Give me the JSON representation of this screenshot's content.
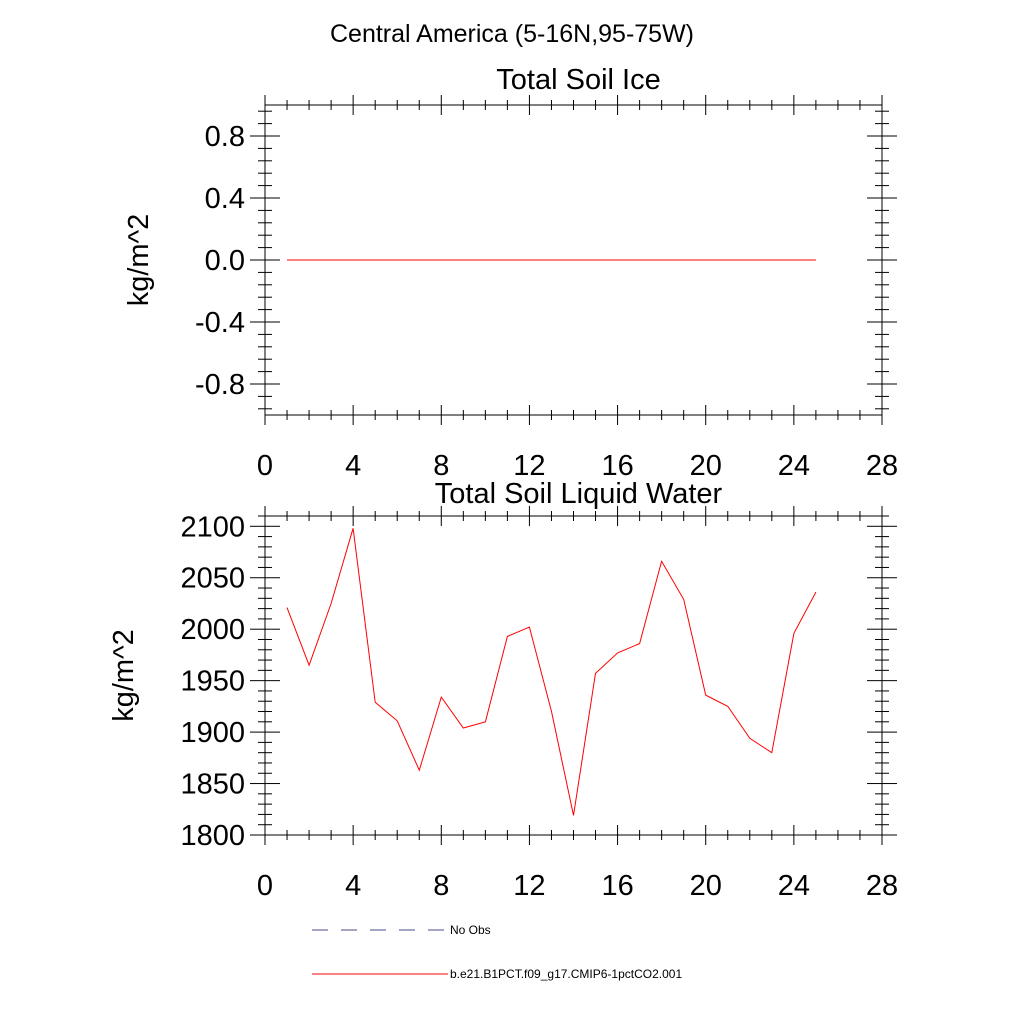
{
  "figure_title": "Central America (5-16N,95-75W)",
  "legend": [
    {
      "label": "No Obs",
      "style": "dashed",
      "color": "#4a4a8a"
    },
    {
      "label": "b.e21.B1PCT.f09_g17.CMIP6-1pctCO2.001",
      "style": "solid",
      "color": "#ff0000"
    }
  ],
  "chart_data": [
    {
      "type": "line",
      "title": "Total Soil Ice",
      "xlabel": "",
      "ylabel": "kg/m^2",
      "xlim": [
        0,
        28
      ],
      "ylim": [
        -1,
        1
      ],
      "xticks": [
        0,
        4,
        8,
        12,
        16,
        20,
        24,
        28
      ],
      "yticks": [
        -0.8,
        -0.4,
        0.0,
        0.4,
        0.8
      ],
      "ytick_labels": [
        "-0.8",
        "-0.4",
        "0.0",
        "0.4",
        "0.8"
      ],
      "series": [
        {
          "name": "b.e21.B1PCT.f09_g17.CMIP6-1pctCO2.001",
          "color": "#ff0000",
          "x": [
            1,
            2,
            3,
            4,
            5,
            6,
            7,
            8,
            9,
            10,
            11,
            12,
            13,
            14,
            15,
            16,
            17,
            18,
            19,
            20,
            21,
            22,
            23,
            24,
            25
          ],
          "y": [
            0,
            0,
            0,
            0,
            0,
            0,
            0,
            0,
            0,
            0,
            0,
            0,
            0,
            0,
            0,
            0,
            0,
            0,
            0,
            0,
            0,
            0,
            0,
            0,
            0
          ]
        }
      ]
    },
    {
      "type": "line",
      "title": "Total Soil Liquid Water",
      "xlabel": "",
      "ylabel": "kg/m^2",
      "xlim": [
        0,
        28
      ],
      "ylim": [
        1800,
        2110
      ],
      "xticks": [
        0,
        4,
        8,
        12,
        16,
        20,
        24,
        28
      ],
      "yticks": [
        1800,
        1850,
        1900,
        1950,
        2000,
        2050,
        2100
      ],
      "ytick_labels": [
        "1800",
        "1850",
        "1900",
        "1950",
        "2000",
        "2050",
        "2100"
      ],
      "series": [
        {
          "name": "b.e21.B1PCT.f09_g17.CMIP6-1pctCO2.001",
          "color": "#ff0000",
          "x": [
            1,
            2,
            3,
            4,
            5,
            6,
            7,
            8,
            9,
            10,
            11,
            12,
            13,
            14,
            15,
            16,
            17,
            18,
            19,
            20,
            21,
            22,
            23,
            24,
            25
          ],
          "y": [
            2021,
            1965,
            2025,
            2098,
            1929,
            1911,
            1863,
            1934,
            1904,
            1910,
            1993,
            2002,
            1920,
            1819,
            1957,
            1977,
            1986,
            2066,
            2029,
            1936,
            1925,
            1894,
            1880,
            1996,
            2036
          ]
        }
      ]
    }
  ]
}
